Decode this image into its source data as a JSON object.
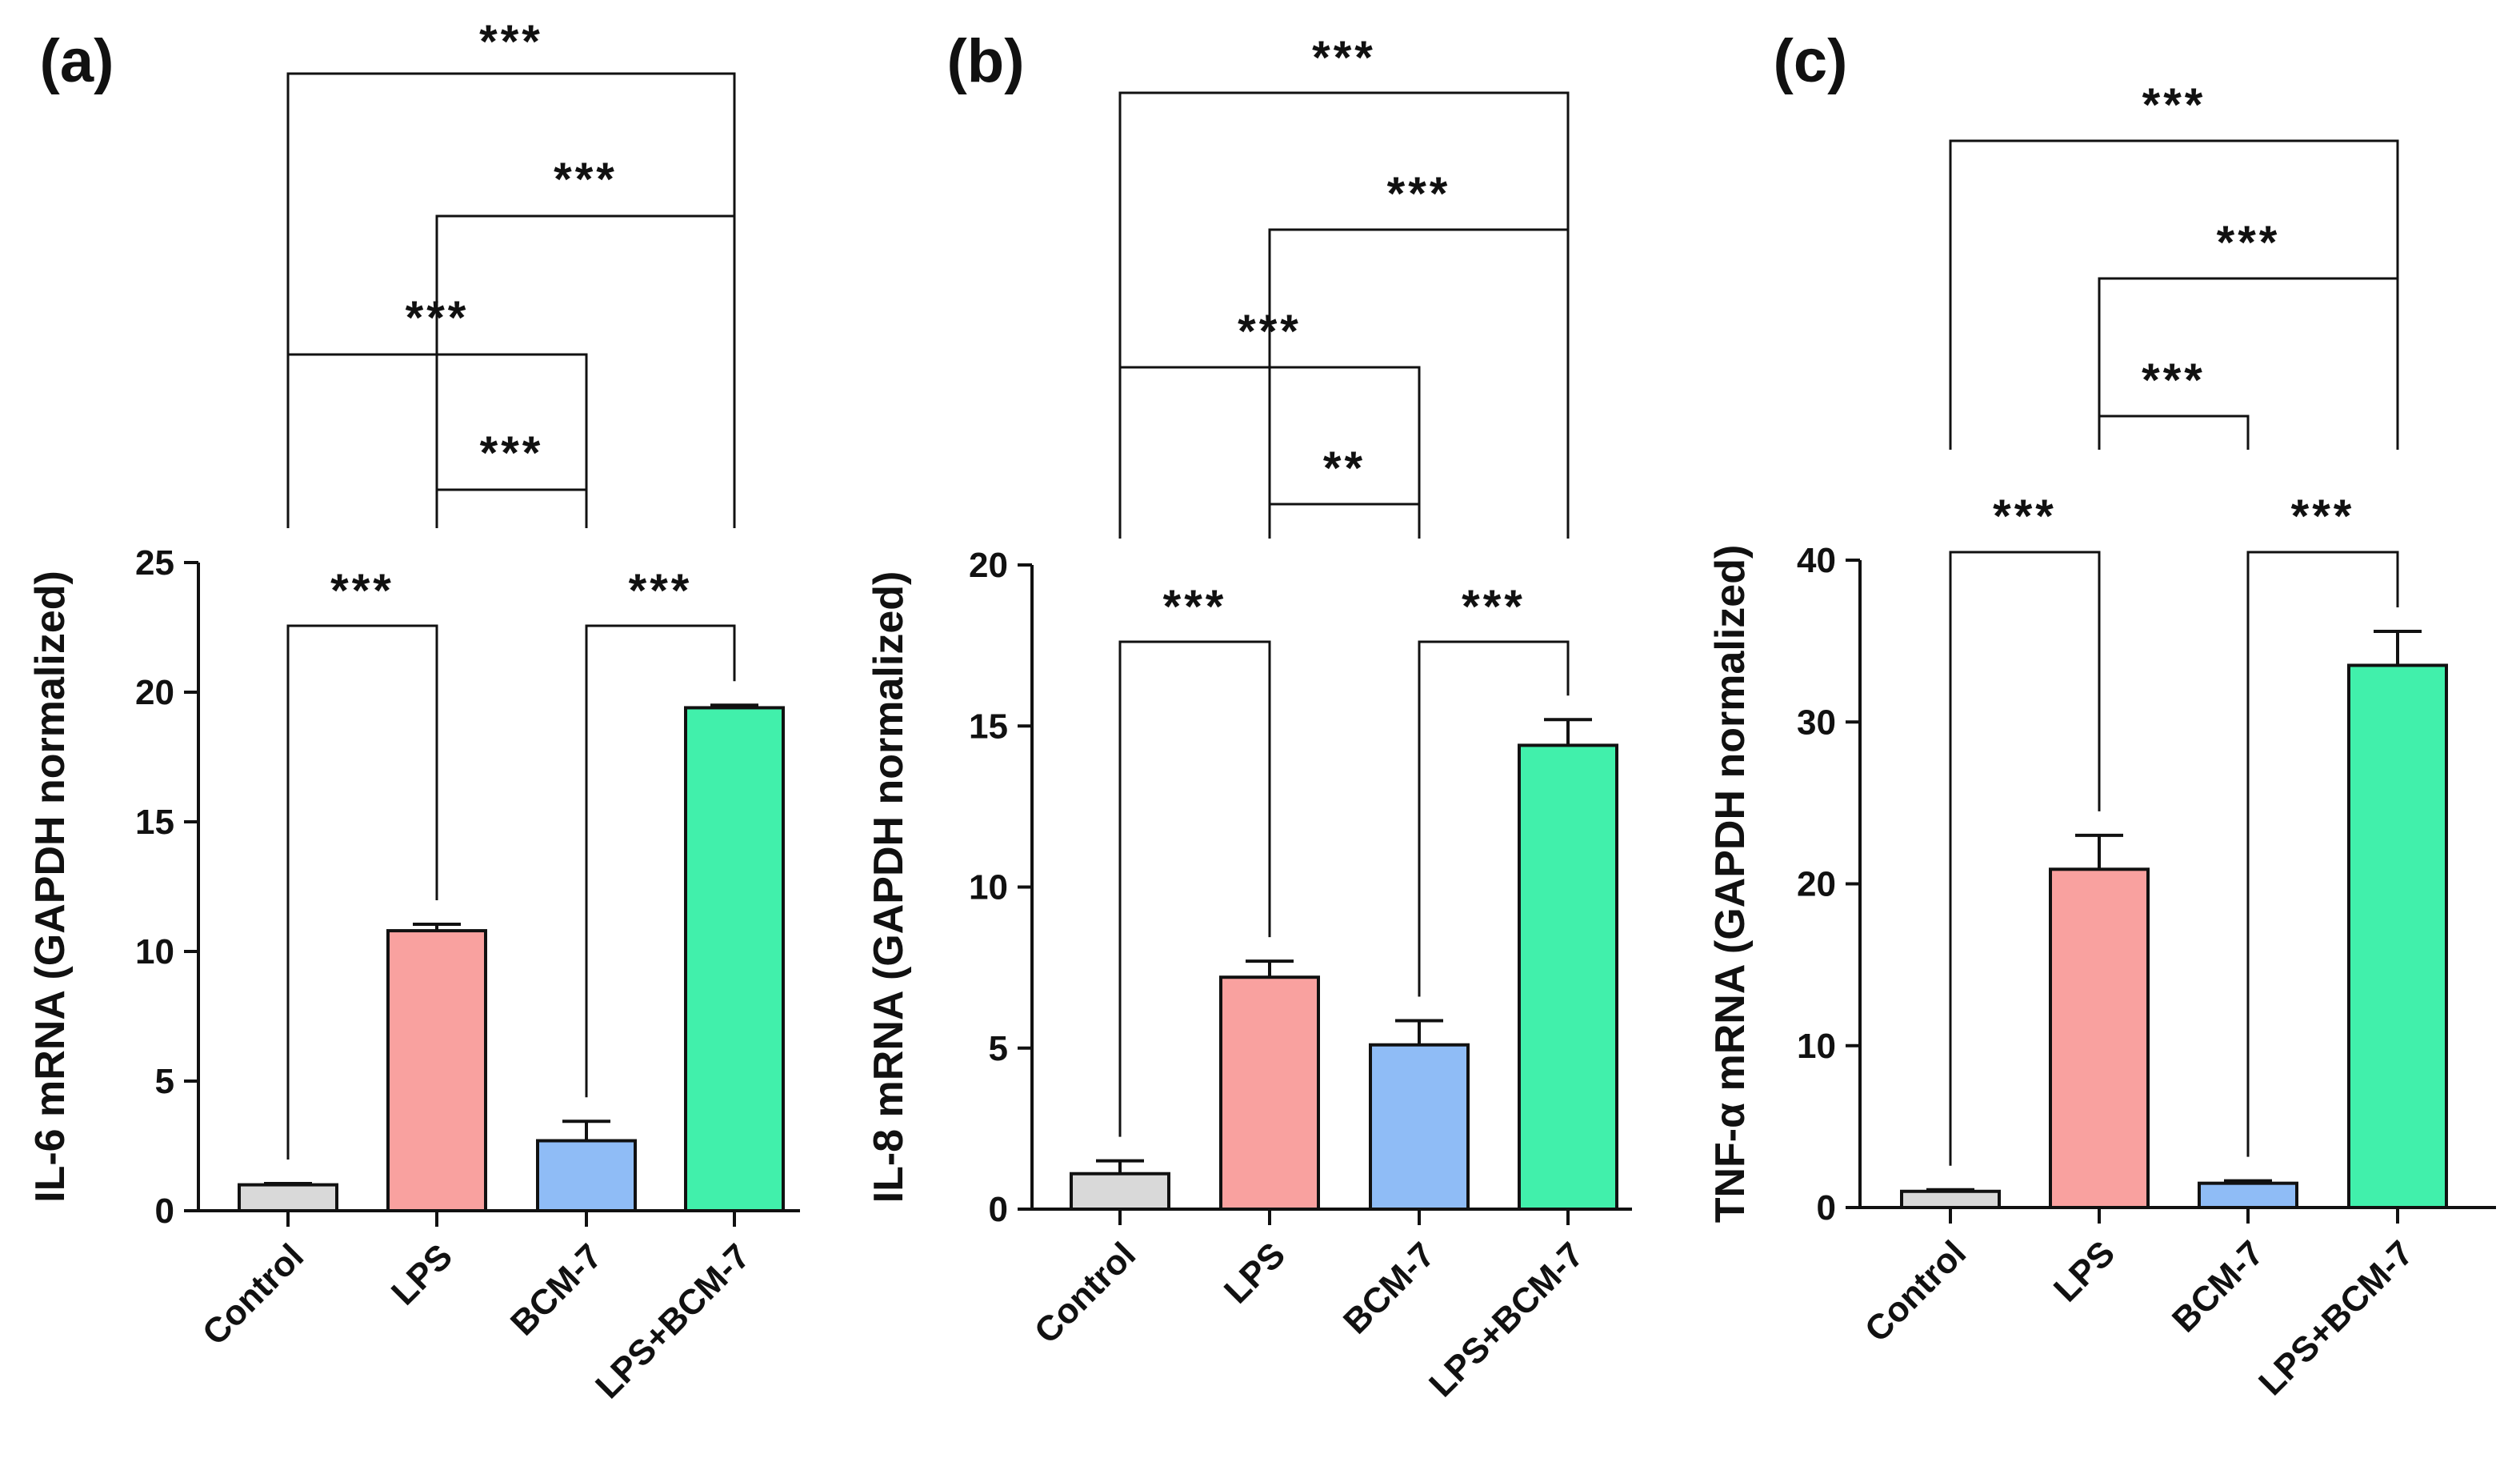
{
  "chart_data": [
    {
      "type": "bar",
      "panel_label": "(a)",
      "ylabel": "IL-6 mRNA (GAPDH normalized)",
      "categories": [
        "Control",
        "LPS",
        "BCM-7",
        "LPS+BCM-7"
      ],
      "values": [
        1.0,
        10.8,
        2.7,
        19.4
      ],
      "errors": [
        0.05,
        0.25,
        0.75,
        0.1
      ],
      "colors": [
        "#d9d9d9",
        "#f9a19f",
        "#8fbcf6",
        "#41f0ab"
      ],
      "ylim": [
        0,
        25
      ],
      "yticks": [
        0,
        5,
        10,
        15,
        20,
        25
      ],
      "comparisons": [
        {
          "from": 0,
          "to": 1,
          "label": "***"
        },
        {
          "from": 2,
          "to": 3,
          "label": "***"
        },
        {
          "from": 1,
          "to": 2,
          "label": "***"
        },
        {
          "from": 0,
          "to": 2,
          "label": "***"
        },
        {
          "from": 1,
          "to": 3,
          "label": "***"
        },
        {
          "from": 0,
          "to": 3,
          "label": "***"
        }
      ]
    },
    {
      "type": "bar",
      "panel_label": "(b)",
      "ylabel": "IL-8 mRNA (GAPDH normalized)",
      "categories": [
        "Control",
        "LPS",
        "BCM-7",
        "LPS+BCM-7"
      ],
      "values": [
        1.1,
        7.2,
        5.1,
        14.4
      ],
      "errors": [
        0.4,
        0.5,
        0.75,
        0.8
      ],
      "colors": [
        "#d9d9d9",
        "#f9a19f",
        "#8fbcf6",
        "#41f0ab"
      ],
      "ylim": [
        0,
        20
      ],
      "yticks": [
        0,
        5,
        10,
        15,
        20
      ],
      "comparisons": [
        {
          "from": 0,
          "to": 1,
          "label": "***"
        },
        {
          "from": 2,
          "to": 3,
          "label": "***"
        },
        {
          "from": 1,
          "to": 2,
          "label": "**"
        },
        {
          "from": 0,
          "to": 2,
          "label": "***"
        },
        {
          "from": 1,
          "to": 3,
          "label": "***"
        },
        {
          "from": 0,
          "to": 3,
          "label": "***"
        }
      ]
    },
    {
      "type": "bar",
      "panel_label": "(c)",
      "ylabel": "TNF-α mRNA (GAPDH normalized)",
      "categories": [
        "Control",
        "LPS",
        "BCM-7",
        "LPS+BCM-7"
      ],
      "values": [
        1.0,
        20.9,
        1.5,
        33.5
      ],
      "errors": [
        0.1,
        2.1,
        0.15,
        2.1
      ],
      "colors": [
        "#d9d9d9",
        "#f9a19f",
        "#8fbcf6",
        "#41f0ab"
      ],
      "ylim": [
        0,
        40
      ],
      "yticks": [
        0,
        10,
        20,
        30,
        40
      ],
      "comparisons": [
        {
          "from": 0,
          "to": 1,
          "label": "***"
        },
        {
          "from": 2,
          "to": 3,
          "label": "***"
        },
        {
          "from": 1,
          "to": 2,
          "label": "***"
        },
        {
          "from": 1,
          "to": 3,
          "label": "***"
        },
        {
          "from": 0,
          "to": 3,
          "label": "***"
        }
      ]
    }
  ]
}
